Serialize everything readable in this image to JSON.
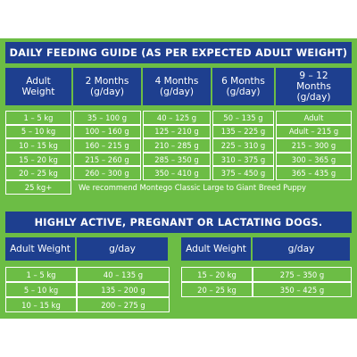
{
  "guide": {
    "title": "DAILY FEEDING GUIDE (AS PER EXPECTED ADULT WEIGHT)",
    "headers": [
      [
        "Adult",
        "Weight"
      ],
      [
        "2 Months",
        "(g/day)"
      ],
      [
        "4 Months",
        "(g/day)"
      ],
      [
        "6 Months",
        "(g/day)"
      ],
      [
        "9 – 12",
        "Months",
        "(g/day)"
      ]
    ],
    "rows": [
      [
        "1 – 5 kg",
        "35 – 100 g",
        "40 – 125 g",
        "50 – 135 g",
        "Adult"
      ],
      [
        "5 – 10 kg",
        "100 – 160 g",
        "125 – 210 g",
        "135 – 225 g",
        "Adult – 215 g"
      ],
      [
        "10 – 15 kg",
        "160 – 215 g",
        "210 – 285 g",
        "225 – 310 g",
        "215 – 300 g"
      ],
      [
        "15 – 20 kg",
        "215 – 260 g",
        "285 – 350 g",
        "310 – 375 g",
        "300 – 365 g"
      ],
      [
        "20 – 25 kg",
        "260 – 300 g",
        "350 – 410 g",
        "375 – 450 g",
        "365 – 435 g"
      ]
    ],
    "last_row": {
      "weight": "25 kg+",
      "note": "We recommend Montego Classic Large to Giant Breed Puppy"
    }
  },
  "active": {
    "title": "HIGHLY ACTIVE, PREGNANT OR LACTATING DOGS.",
    "left": {
      "headers": [
        "Adult Weight",
        "g/day"
      ],
      "rows": [
        [
          "1 – 5 kg",
          "40 – 135 g"
        ],
        [
          "5 – 10 kg",
          "135 – 200 g"
        ],
        [
          "10 – 15 kg",
          "200 – 275 g"
        ]
      ]
    },
    "right": {
      "headers": [
        "Adult Weight",
        "g/day"
      ],
      "rows": [
        [
          "15 – 20 kg",
          "275 – 350 g"
        ],
        [
          "20 – 25 kg",
          "350 – 425 g"
        ]
      ]
    }
  }
}
